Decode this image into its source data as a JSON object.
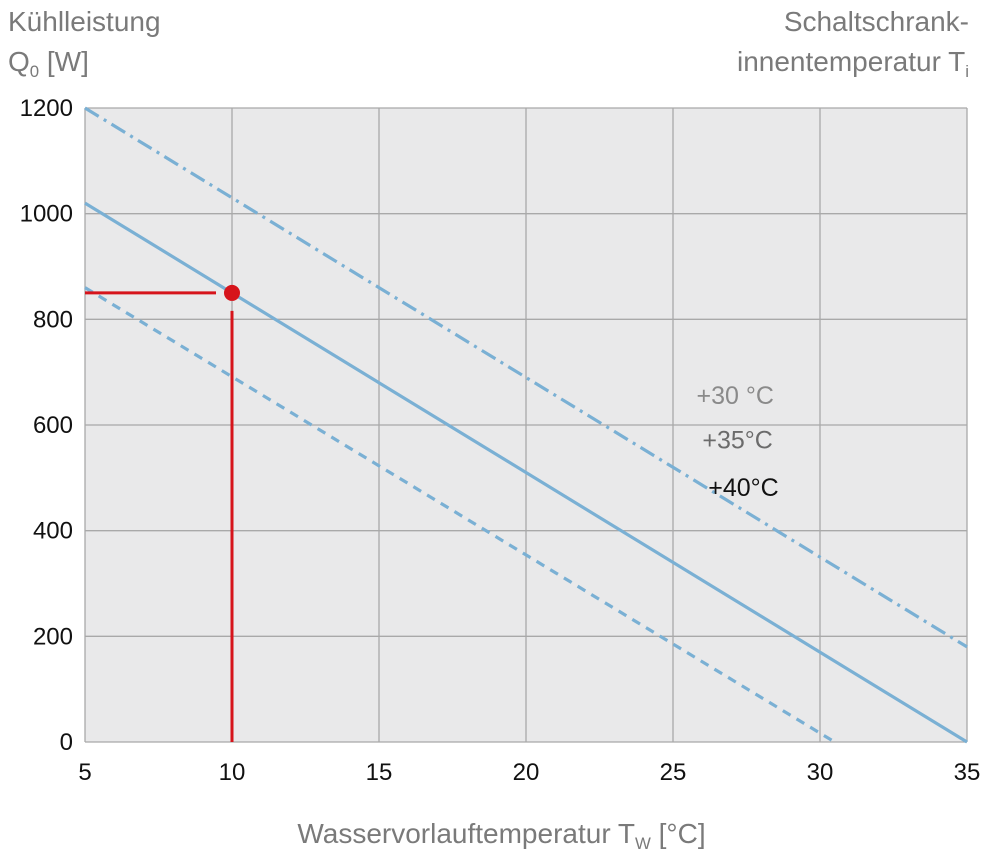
{
  "ylabel_left": {
    "line1": "Kühlleistung",
    "line2_main": "Q",
    "line2_sub": "0",
    "line2_tail": " [W]"
  },
  "ylabel_right": {
    "line1": "Schaltschrank-",
    "line2_main": "innentemperatur T",
    "line2_sub": "i"
  },
  "xlabel": {
    "main": "Wasservorlauftemperatur T",
    "sub": "W",
    "tail": " [°C]"
  },
  "colors": {
    "plot_bg": "#e9e9ea",
    "grid": "#a9a9a9",
    "series": "#7ab0d4",
    "marker": "#d6141b"
  },
  "chart_data": {
    "type": "line",
    "xlim": [
      5,
      35
    ],
    "ylim": [
      0,
      1200
    ],
    "xticks": [
      5,
      10,
      15,
      20,
      25,
      30,
      35
    ],
    "yticks": [
      0,
      200,
      400,
      600,
      800,
      1000,
      1200
    ],
    "grid": true,
    "series": [
      {
        "name": "+40°C",
        "style": "dashdot",
        "x": [
          5,
          35
        ],
        "y": [
          1200,
          180
        ],
        "label_at": [
          26.2,
          483
        ],
        "label_color": "#111111"
      },
      {
        "name": "+35°C",
        "style": "solid",
        "x": [
          5,
          35
        ],
        "y": [
          1020,
          0
        ],
        "label_at": [
          26.0,
          573
        ],
        "label_color": "#6b6b6b"
      },
      {
        "name": "+30 °C",
        "style": "dashed",
        "x": [
          5,
          30.5
        ],
        "y": [
          860,
          0
        ],
        "label_at": [
          25.8,
          657
        ],
        "label_color": "#8a8a8a"
      }
    ],
    "annotation": {
      "point": [
        10,
        850
      ],
      "guide_to_y_axis": true,
      "guide_to_x_axis": true
    }
  }
}
